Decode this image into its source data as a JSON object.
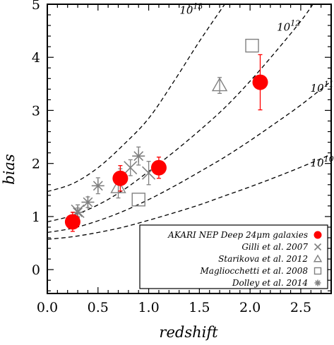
{
  "chart_data": {
    "type": "scatter",
    "xlabel": "redshift",
    "ylabel": "bias",
    "xlim": [
      0.0,
      2.8
    ],
    "ylim": [
      -0.45,
      5.0
    ],
    "xticks": [
      "0.0",
      "0.5",
      "1.0",
      "1.5",
      "2.0",
      "2.5"
    ],
    "xtick_values": [
      0.0,
      0.5,
      1.0,
      1.5,
      2.0,
      2.5
    ],
    "yticks": [
      "0",
      "1",
      "2",
      "3",
      "4",
      "5"
    ],
    "ytick_values": [
      0,
      1,
      2,
      3,
      4,
      5
    ],
    "grid": false,
    "legend_position": "bottom-right",
    "model_curves": [
      {
        "label_base": "10",
        "label_exp": "13",
        "label_x": 1.42,
        "label_y": 4.82,
        "points": [
          [
            0,
            1.47
          ],
          [
            0.25,
            1.62
          ],
          [
            0.5,
            1.92
          ],
          [
            0.75,
            2.35
          ],
          [
            1.0,
            2.85
          ],
          [
            1.25,
            3.55
          ],
          [
            1.5,
            4.3
          ],
          [
            1.75,
            5.0
          ]
        ]
      },
      {
        "label_base": "10",
        "label_exp": "12",
        "label_x": 2.38,
        "label_y": 4.5,
        "points": [
          [
            0,
            0.9
          ],
          [
            0.25,
            1.02
          ],
          [
            0.5,
            1.22
          ],
          [
            0.75,
            1.5
          ],
          [
            1.0,
            1.85
          ],
          [
            1.25,
            2.22
          ],
          [
            1.5,
            2.62
          ],
          [
            1.75,
            3.05
          ],
          [
            2.0,
            3.55
          ],
          [
            2.25,
            4.1
          ],
          [
            2.5,
            4.68
          ],
          [
            2.62,
            5.0
          ]
        ]
      },
      {
        "label_base": "10",
        "label_exp": "11",
        "label_x": 2.71,
        "label_y": 3.35,
        "points": [
          [
            0,
            0.7
          ],
          [
            0.25,
            0.78
          ],
          [
            0.5,
            0.92
          ],
          [
            0.75,
            1.1
          ],
          [
            1.0,
            1.32
          ],
          [
            1.25,
            1.57
          ],
          [
            1.5,
            1.84
          ],
          [
            1.75,
            2.12
          ],
          [
            2.0,
            2.43
          ],
          [
            2.25,
            2.76
          ],
          [
            2.5,
            3.1
          ],
          [
            2.8,
            3.55
          ]
        ]
      },
      {
        "label_base": "10",
        "label_exp": "10",
        "label_x": 2.71,
        "label_y": 1.94,
        "points": [
          [
            0,
            0.57
          ],
          [
            0.25,
            0.62
          ],
          [
            0.5,
            0.7
          ],
          [
            0.75,
            0.8
          ],
          [
            1.0,
            0.93
          ],
          [
            1.25,
            1.07
          ],
          [
            1.5,
            1.22
          ],
          [
            1.75,
            1.39
          ],
          [
            2.0,
            1.56
          ],
          [
            2.25,
            1.74
          ],
          [
            2.5,
            1.93
          ],
          [
            2.8,
            2.17
          ]
        ]
      }
    ],
    "series": [
      {
        "name": "AKARI NEP Deep 24μm galaxies",
        "marker": "filled-circle",
        "color": "#ff0000",
        "points": [
          {
            "x": 0.25,
            "y": 0.9,
            "yerr": 0.18
          },
          {
            "x": 0.72,
            "y": 1.72,
            "yerr": 0.24
          },
          {
            "x": 1.1,
            "y": 1.92,
            "yerr": 0.2
          },
          {
            "x": 2.1,
            "y": 3.53,
            "yerr": 0.52
          }
        ]
      },
      {
        "name": "Gilli et al. 2007",
        "marker": "x",
        "color": "#808080",
        "points": [
          {
            "x": 0.3,
            "y": 1.1,
            "yerr": 0.12
          },
          {
            "x": 0.82,
            "y": 1.92,
            "yerr": 0.15
          },
          {
            "x": 1.0,
            "y": 1.82,
            "yerr": 0.22
          }
        ]
      },
      {
        "name": "Starikova et al. 2012",
        "marker": "triangle",
        "color": "#808080",
        "points": [
          {
            "x": 0.7,
            "y": 1.55,
            "yerr": 0.2
          },
          {
            "x": 1.7,
            "y": 3.47,
            "yerr": 0.15
          }
        ]
      },
      {
        "name": "Magliocchetti et al. 2008",
        "marker": "square",
        "color": "#808080",
        "points": [
          {
            "x": 0.9,
            "y": 1.32,
            "yerr": 0
          },
          {
            "x": 2.02,
            "y": 4.22,
            "yerr": 0
          }
        ]
      },
      {
        "name": "Dolley et al. 2014",
        "marker": "asterisk",
        "color": "#808080",
        "points": [
          {
            "x": 0.3,
            "y": 1.08,
            "yerr": 0.08
          },
          {
            "x": 0.4,
            "y": 1.27,
            "yerr": 0.1
          },
          {
            "x": 0.5,
            "y": 1.58,
            "yerr": 0.15
          },
          {
            "x": 0.72,
            "y": 1.75,
            "yerr": 0.15
          },
          {
            "x": 0.9,
            "y": 2.14,
            "yerr": 0.17
          }
        ]
      }
    ]
  }
}
